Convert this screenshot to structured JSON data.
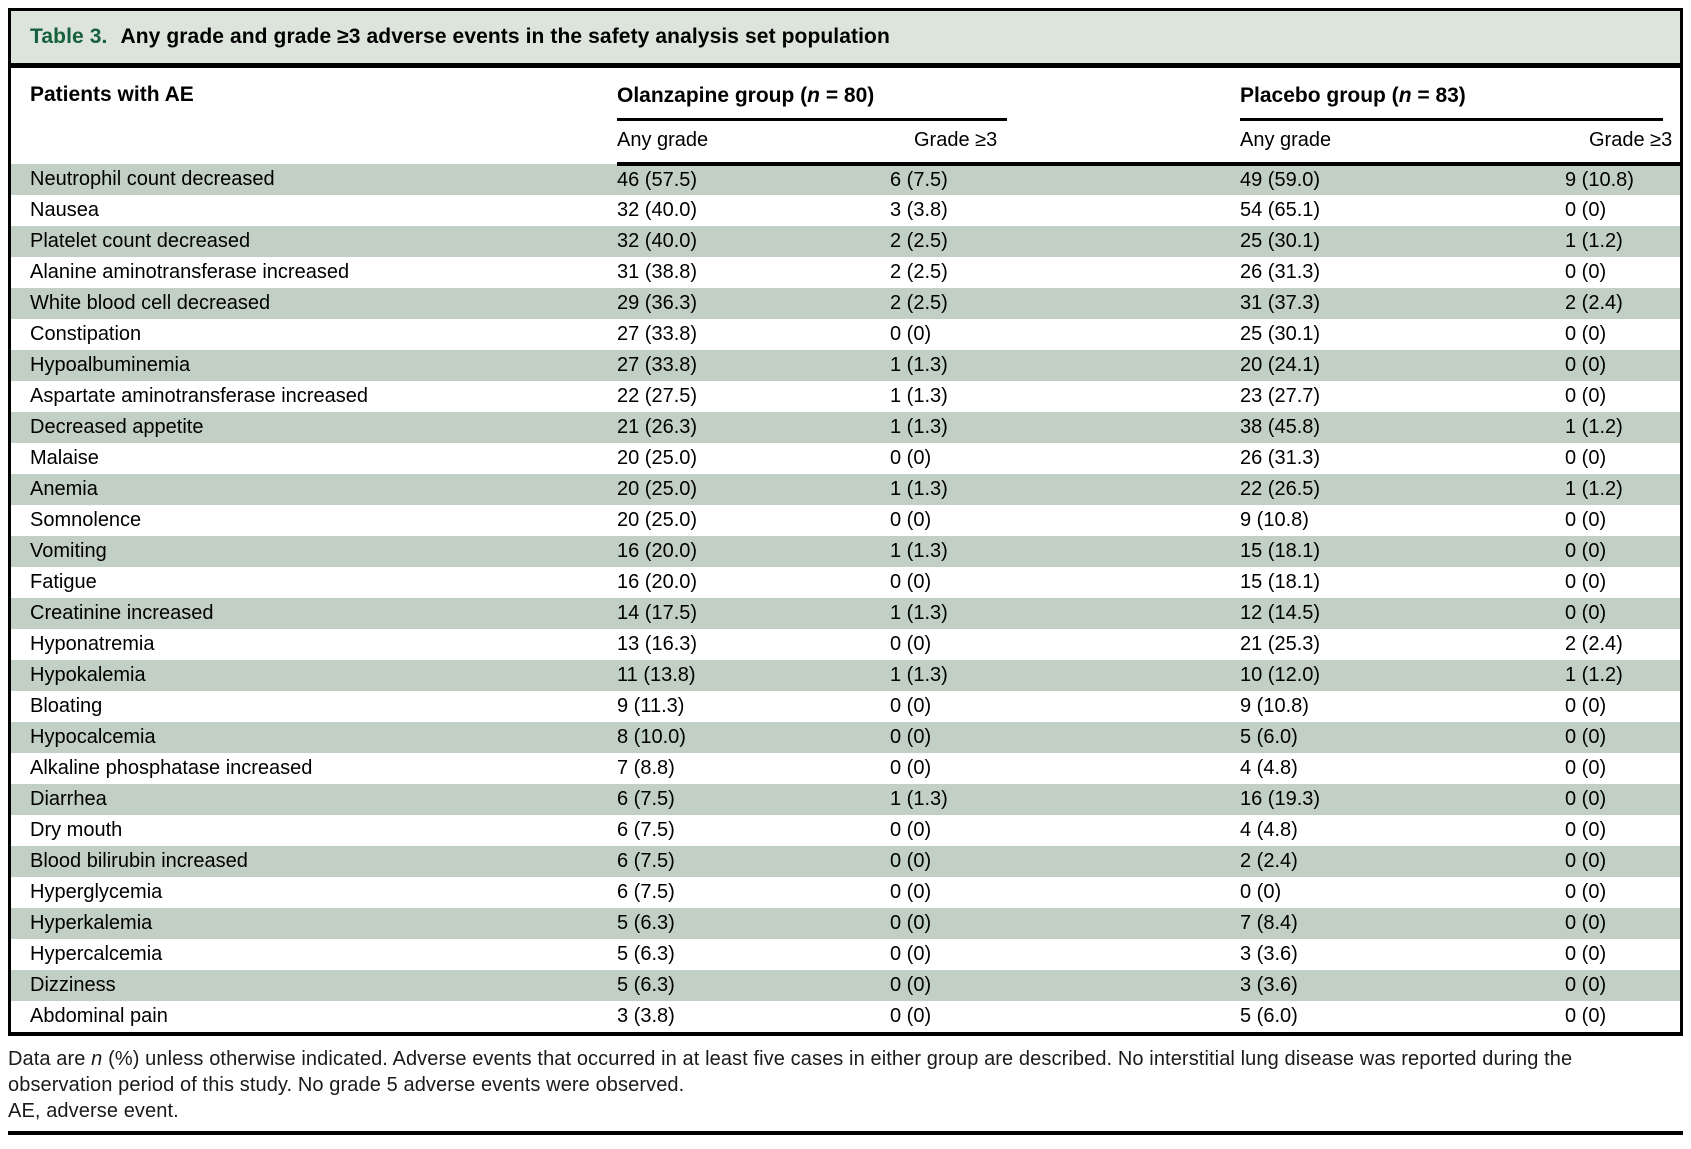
{
  "title": {
    "label": "Table 3.",
    "text": "Any grade and grade ≥3 adverse events in the safety analysis set population"
  },
  "header": {
    "row_label": "Patients with AE",
    "groups": [
      {
        "prefix": "Olanzapine group (",
        "n": "n",
        "suffix": " = 80)",
        "any_grade": "Any grade",
        "grade3": "Grade ≥3"
      },
      {
        "prefix": "Placebo group (",
        "n": "n",
        "suffix": " = 83)",
        "any_grade": "Any grade",
        "grade3": "Grade ≥3"
      }
    ]
  },
  "rows": [
    {
      "event": "Neutrophil count decreased",
      "olanzapine_any_grade": "46 (57.5)",
      "olanzapine_grade3": "6 (7.5)",
      "placebo_any_grade": "49 (59.0)",
      "placebo_grade3": "9 (10.8)"
    },
    {
      "event": "Nausea",
      "olanzapine_any_grade": "32 (40.0)",
      "olanzapine_grade3": "3 (3.8)",
      "placebo_any_grade": "54 (65.1)",
      "placebo_grade3": "0 (0)"
    },
    {
      "event": "Platelet count decreased",
      "olanzapine_any_grade": "32 (40.0)",
      "olanzapine_grade3": "2 (2.5)",
      "placebo_any_grade": "25 (30.1)",
      "placebo_grade3": "1 (1.2)"
    },
    {
      "event": "Alanine aminotransferase increased",
      "olanzapine_any_grade": "31 (38.8)",
      "olanzapine_grade3": "2 (2.5)",
      "placebo_any_grade": "26 (31.3)",
      "placebo_grade3": "0 (0)"
    },
    {
      "event": "White blood cell decreased",
      "olanzapine_any_grade": "29 (36.3)",
      "olanzapine_grade3": "2 (2.5)",
      "placebo_any_grade": "31 (37.3)",
      "placebo_grade3": "2 (2.4)"
    },
    {
      "event": "Constipation",
      "olanzapine_any_grade": "27 (33.8)",
      "olanzapine_grade3": "0 (0)",
      "placebo_any_grade": "25 (30.1)",
      "placebo_grade3": "0 (0)"
    },
    {
      "event": "Hypoalbuminemia",
      "olanzapine_any_grade": "27 (33.8)",
      "olanzapine_grade3": "1 (1.3)",
      "placebo_any_grade": "20 (24.1)",
      "placebo_grade3": "0 (0)"
    },
    {
      "event": "Aspartate aminotransferase increased",
      "olanzapine_any_grade": "22 (27.5)",
      "olanzapine_grade3": "1 (1.3)",
      "placebo_any_grade": "23 (27.7)",
      "placebo_grade3": "0 (0)"
    },
    {
      "event": "Decreased appetite",
      "olanzapine_any_grade": "21 (26.3)",
      "olanzapine_grade3": "1 (1.3)",
      "placebo_any_grade": "38 (45.8)",
      "placebo_grade3": "1 (1.2)"
    },
    {
      "event": "Malaise",
      "olanzapine_any_grade": "20 (25.0)",
      "olanzapine_grade3": "0 (0)",
      "placebo_any_grade": "26 (31.3)",
      "placebo_grade3": "0 (0)"
    },
    {
      "event": "Anemia",
      "olanzapine_any_grade": "20 (25.0)",
      "olanzapine_grade3": "1 (1.3)",
      "placebo_any_grade": "22 (26.5)",
      "placebo_grade3": "1 (1.2)"
    },
    {
      "event": "Somnolence",
      "olanzapine_any_grade": "20 (25.0)",
      "olanzapine_grade3": "0 (0)",
      "placebo_any_grade": "9 (10.8)",
      "placebo_grade3": "0 (0)"
    },
    {
      "event": "Vomiting",
      "olanzapine_any_grade": "16 (20.0)",
      "olanzapine_grade3": "1 (1.3)",
      "placebo_any_grade": "15 (18.1)",
      "placebo_grade3": "0 (0)"
    },
    {
      "event": "Fatigue",
      "olanzapine_any_grade": "16 (20.0)",
      "olanzapine_grade3": "0 (0)",
      "placebo_any_grade": "15 (18.1)",
      "placebo_grade3": "0 (0)"
    },
    {
      "event": "Creatinine increased",
      "olanzapine_any_grade": "14 (17.5)",
      "olanzapine_grade3": "1 (1.3)",
      "placebo_any_grade": "12 (14.5)",
      "placebo_grade3": "0 (0)"
    },
    {
      "event": "Hyponatremia",
      "olanzapine_any_grade": "13 (16.3)",
      "olanzapine_grade3": "0 (0)",
      "placebo_any_grade": "21 (25.3)",
      "placebo_grade3": "2 (2.4)"
    },
    {
      "event": "Hypokalemia",
      "olanzapine_any_grade": "11 (13.8)",
      "olanzapine_grade3": "1 (1.3)",
      "placebo_any_grade": "10 (12.0)",
      "placebo_grade3": "1 (1.2)"
    },
    {
      "event": "Bloating",
      "olanzapine_any_grade": "9 (11.3)",
      "olanzapine_grade3": "0 (0)",
      "placebo_any_grade": "9 (10.8)",
      "placebo_grade3": "0 (0)"
    },
    {
      "event": "Hypocalcemia",
      "olanzapine_any_grade": "8 (10.0)",
      "olanzapine_grade3": "0 (0)",
      "placebo_any_grade": "5 (6.0)",
      "placebo_grade3": "0 (0)"
    },
    {
      "event": "Alkaline phosphatase increased",
      "olanzapine_any_grade": "7 (8.8)",
      "olanzapine_grade3": "0 (0)",
      "placebo_any_grade": "4 (4.8)",
      "placebo_grade3": "0 (0)"
    },
    {
      "event": "Diarrhea",
      "olanzapine_any_grade": "6 (7.5)",
      "olanzapine_grade3": "1 (1.3)",
      "placebo_any_grade": "16 (19.3)",
      "placebo_grade3": "0 (0)"
    },
    {
      "event": "Dry mouth",
      "olanzapine_any_grade": "6 (7.5)",
      "olanzapine_grade3": "0 (0)",
      "placebo_any_grade": "4 (4.8)",
      "placebo_grade3": "0 (0)"
    },
    {
      "event": "Blood bilirubin increased",
      "olanzapine_any_grade": "6 (7.5)",
      "olanzapine_grade3": "0 (0)",
      "placebo_any_grade": "2 (2.4)",
      "placebo_grade3": "0 (0)"
    },
    {
      "event": "Hyperglycemia",
      "olanzapine_any_grade": "6 (7.5)",
      "olanzapine_grade3": "0 (0)",
      "placebo_any_grade": "0 (0)",
      "placebo_grade3": "0 (0)"
    },
    {
      "event": "Hyperkalemia",
      "olanzapine_any_grade": "5 (6.3)",
      "olanzapine_grade3": "0 (0)",
      "placebo_any_grade": "7 (8.4)",
      "placebo_grade3": "0 (0)"
    },
    {
      "event": "Hypercalcemia",
      "olanzapine_any_grade": "5 (6.3)",
      "olanzapine_grade3": "0 (0)",
      "placebo_any_grade": "3 (3.6)",
      "placebo_grade3": "0 (0)"
    },
    {
      "event": "Dizziness",
      "olanzapine_any_grade": "5 (6.3)",
      "olanzapine_grade3": "0 (0)",
      "placebo_any_grade": "3 (3.6)",
      "placebo_grade3": "0 (0)"
    },
    {
      "event": "Abdominal pain",
      "olanzapine_any_grade": "3 (3.8)",
      "olanzapine_grade3": "0 (0)",
      "placebo_any_grade": "5 (6.0)",
      "placebo_grade3": "0 (0)"
    }
  ],
  "footnotes": {
    "line1_pre": "Data are ",
    "line1_n": "n",
    "line1_post": " (%) unless otherwise indicated. Adverse events that occurred in at least five cases in either group are described. No interstitial lung disease was reported during the",
    "line2": "observation period of this study. No grade 5 adverse events were observed.",
    "line3": "AE, adverse event."
  },
  "colors": {
    "accent_green": "#17603c",
    "title_bar_bg": "#dce4db",
    "row_stripe": "#c1cfc4",
    "border": "#000000"
  }
}
